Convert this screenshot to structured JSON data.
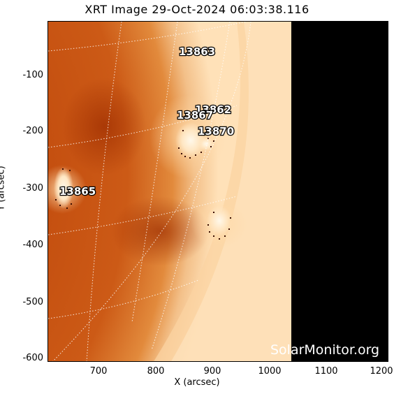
{
  "title": "XRT Image 29-Oct-2024 06:03:38.116",
  "axes": {
    "xlabel": "X (arcsec)",
    "ylabel": "Y (arcsec)",
    "x_ticks": [
      "700",
      "800",
      "900",
      "1000",
      "1100",
      "1200"
    ],
    "y_ticks": [
      "-100",
      "-200",
      "-300",
      "-400",
      "-500",
      "-600"
    ]
  },
  "regions": [
    {
      "id": "13863",
      "label": "13863"
    },
    {
      "id": "13862",
      "label": "13862"
    },
    {
      "id": "13867",
      "label": "13867"
    },
    {
      "id": "13870",
      "label": "13870"
    },
    {
      "id": "13865",
      "label": "13865"
    }
  ],
  "watermark": "SolarMonitor.org",
  "colors": {
    "disk": "#c24a08",
    "limb": "#f3c089",
    "offlimb": "#ffe1b8",
    "outside": "#000000",
    "grid": "#ffffff"
  }
}
